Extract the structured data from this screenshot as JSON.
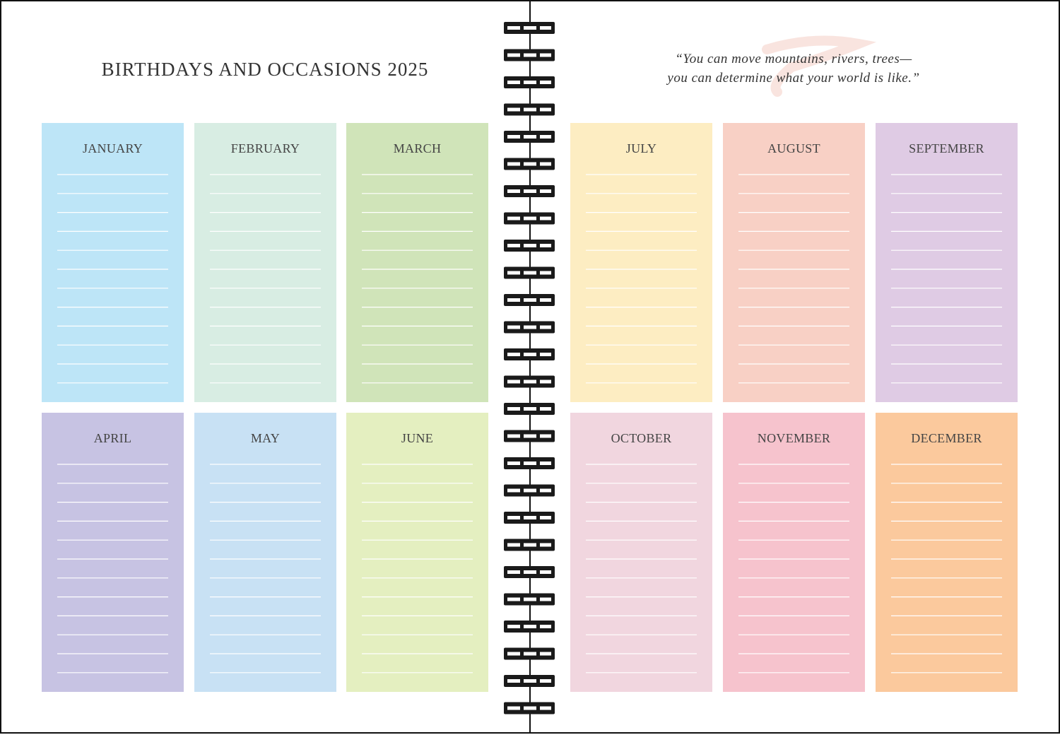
{
  "header": {
    "title": "BIRTHDAYS AND OCCASIONS 2025"
  },
  "quote": {
    "lines": [
      "“You can move mountains, rivers, trees—",
      "you can determine what your world is like.”"
    ]
  },
  "months": [
    {
      "name": "JANUARY"
    },
    {
      "name": "FEBRUARY"
    },
    {
      "name": "MARCH"
    },
    {
      "name": "APRIL"
    },
    {
      "name": "MAY"
    },
    {
      "name": "JUNE"
    },
    {
      "name": "JULY"
    },
    {
      "name": "AUGUST"
    },
    {
      "name": "SEPTEMBER"
    },
    {
      "name": "OCTOBER"
    },
    {
      "name": "NOVEMBER"
    },
    {
      "name": "DECEMBER"
    }
  ]
}
